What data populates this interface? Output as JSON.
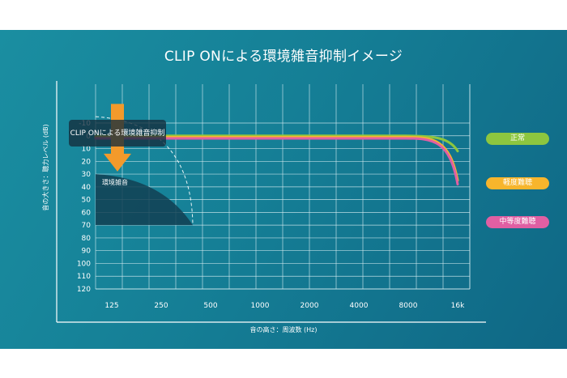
{
  "chart_data": {
    "type": "line",
    "title": "CLIP ONによる環境雑音抑制イメージ",
    "xlabel": "音の高さ：周波数 (Hz)",
    "ylabel": "音の大きさ：聴力レベル (dB)",
    "x_ticks": [
      "125",
      "250",
      "500",
      "1000",
      "2000",
      "4000",
      "8000",
      "16k"
    ],
    "y_ticks": [
      "-10",
      "0",
      "10",
      "20",
      "30",
      "40",
      "50",
      "60",
      "70",
      "80",
      "90",
      "100",
      "110",
      "120"
    ],
    "ylim": [
      -10,
      120
    ],
    "y_inverted": true,
    "grid": true,
    "legend_position": "right",
    "series": [
      {
        "name": "正常",
        "color": "#8dc63f",
        "x": [
          "125",
          "250",
          "500",
          "1000",
          "2000",
          "4000",
          "8000",
          "16k"
        ],
        "values": [
          0,
          0,
          0,
          0,
          0,
          0,
          0,
          12
        ]
      },
      {
        "name": "軽度難聴",
        "color": "#f7b52c",
        "x": [
          "125",
          "250",
          "500",
          "1000",
          "2000",
          "4000",
          "8000",
          "16k"
        ],
        "values": [
          0,
          0,
          0,
          0,
          0,
          0,
          0,
          35
        ]
      },
      {
        "name": "中等度難聴",
        "color": "#e05fa3",
        "x": [
          "125",
          "250",
          "500",
          "1000",
          "2000",
          "4000",
          "8000",
          "16k"
        ],
        "values": [
          0,
          0,
          0,
          0,
          0,
          0,
          0,
          38
        ]
      }
    ],
    "annotations": {
      "arrow_label": "CLIP ONによる環境雑音抑制",
      "noise_label": "環境雑音"
    },
    "colors": {
      "background": "#157f96",
      "grid": "#d8eef2",
      "arrow": "#f39a2b",
      "noise_region": "#123f52"
    }
  }
}
